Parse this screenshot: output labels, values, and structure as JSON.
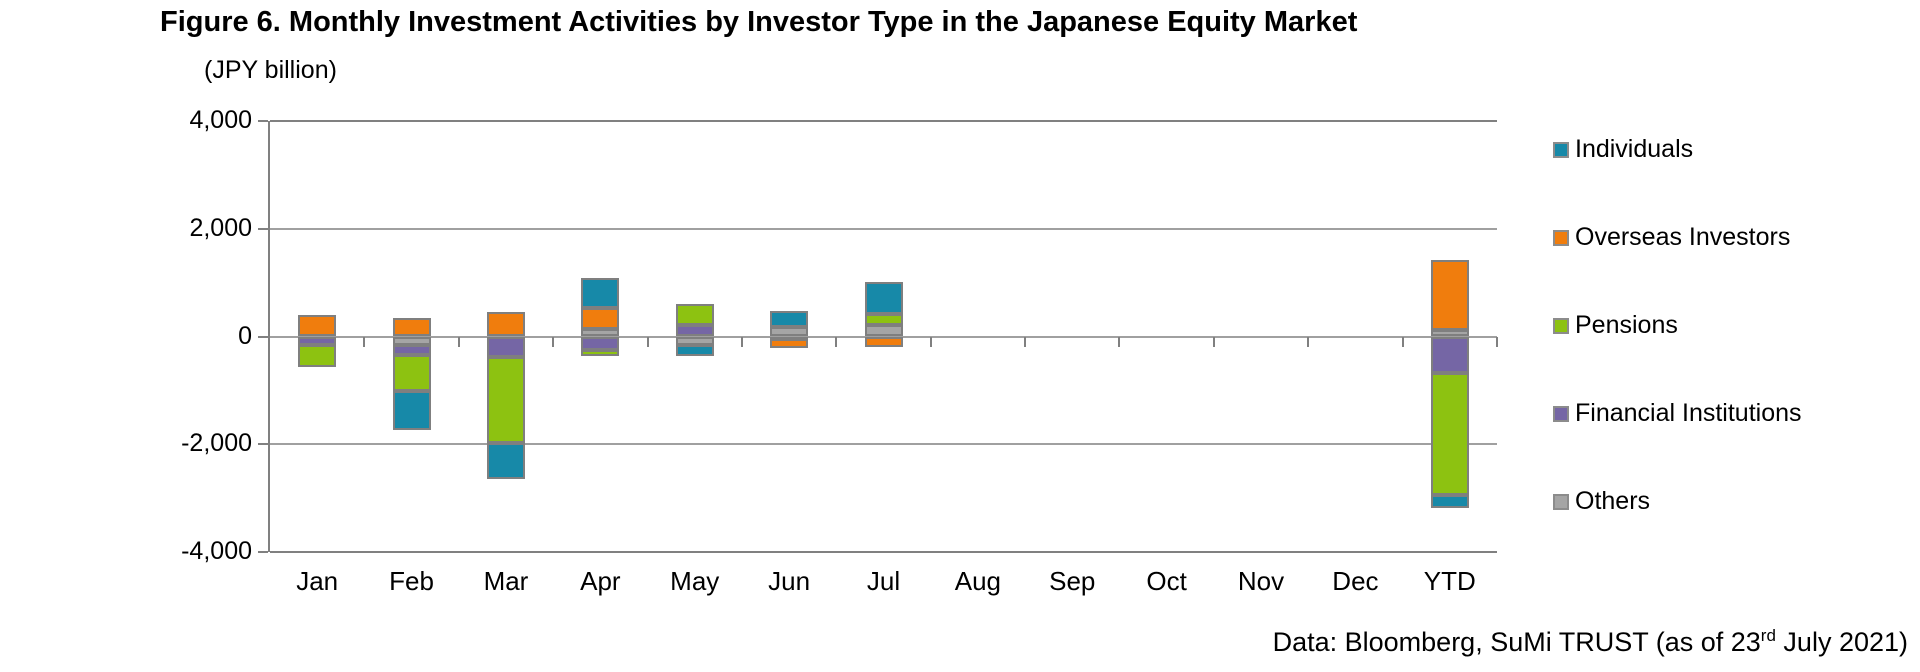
{
  "title": "Figure 6. Monthly Investment Activities by Investor Type in the Japanese Equity Market",
  "axis_unit": "(JPY billion)",
  "source": {
    "prefix": "Data: Bloomberg, SuMi TRUST (as of 23",
    "superscript": "rd",
    "suffix": " July 2021)"
  },
  "chart_data": {
    "type": "bar",
    "stacked": true,
    "title": "Figure 6. Monthly Investment Activities by Investor Type in the Japanese Equity Market",
    "ylabel": "(JPY billion)",
    "xlabel": "",
    "ylim": [
      -4000,
      4000
    ],
    "yticks": [
      4000,
      2000,
      0,
      -2000,
      -4000
    ],
    "ytick_labels": [
      "4,000",
      "2,000",
      "0",
      "-2,000",
      "-4,000"
    ],
    "grid": true,
    "legend_position": "right",
    "categories": [
      "Jan",
      "Feb",
      "Mar",
      "Apr",
      "May",
      "Jun",
      "Jul",
      "Aug",
      "Sep",
      "Oct",
      "Nov",
      "Dec",
      "YTD"
    ],
    "series": [
      {
        "name": "Individuals",
        "color": "#1789a8",
        "values": [
          0,
          -730,
          -660,
          570,
          -220,
          300,
          590,
          0,
          0,
          0,
          0,
          0,
          -230
        ]
      },
      {
        "name": "Overseas Investors",
        "color": "#f07d0d",
        "values": [
          390,
          340,
          450,
          390,
          0,
          -180,
          -190,
          0,
          0,
          0,
          0,
          0,
          1300
        ]
      },
      {
        "name": "Pensions",
        "color": "#8dc211",
        "values": [
          -400,
          -670,
          -1600,
          -110,
          390,
          0,
          200,
          0,
          0,
          0,
          0,
          0,
          -2270
        ]
      },
      {
        "name": "Financial Institutions",
        "color": "#7566a5",
        "values": [
          -160,
          -190,
          -380,
          -250,
          220,
          -40,
          0,
          0,
          0,
          0,
          0,
          0,
          -680
        ]
      },
      {
        "name": "Others",
        "color": "#a5a5a5",
        "values": [
          0,
          -150,
          0,
          130,
          -150,
          180,
          220,
          0,
          0,
          0,
          0,
          0,
          120
        ]
      }
    ],
    "stack_order_note": "stacked from zero outward in reverse legend order: Others, Financial Institutions, Pensions, Overseas Investors, Individuals"
  }
}
